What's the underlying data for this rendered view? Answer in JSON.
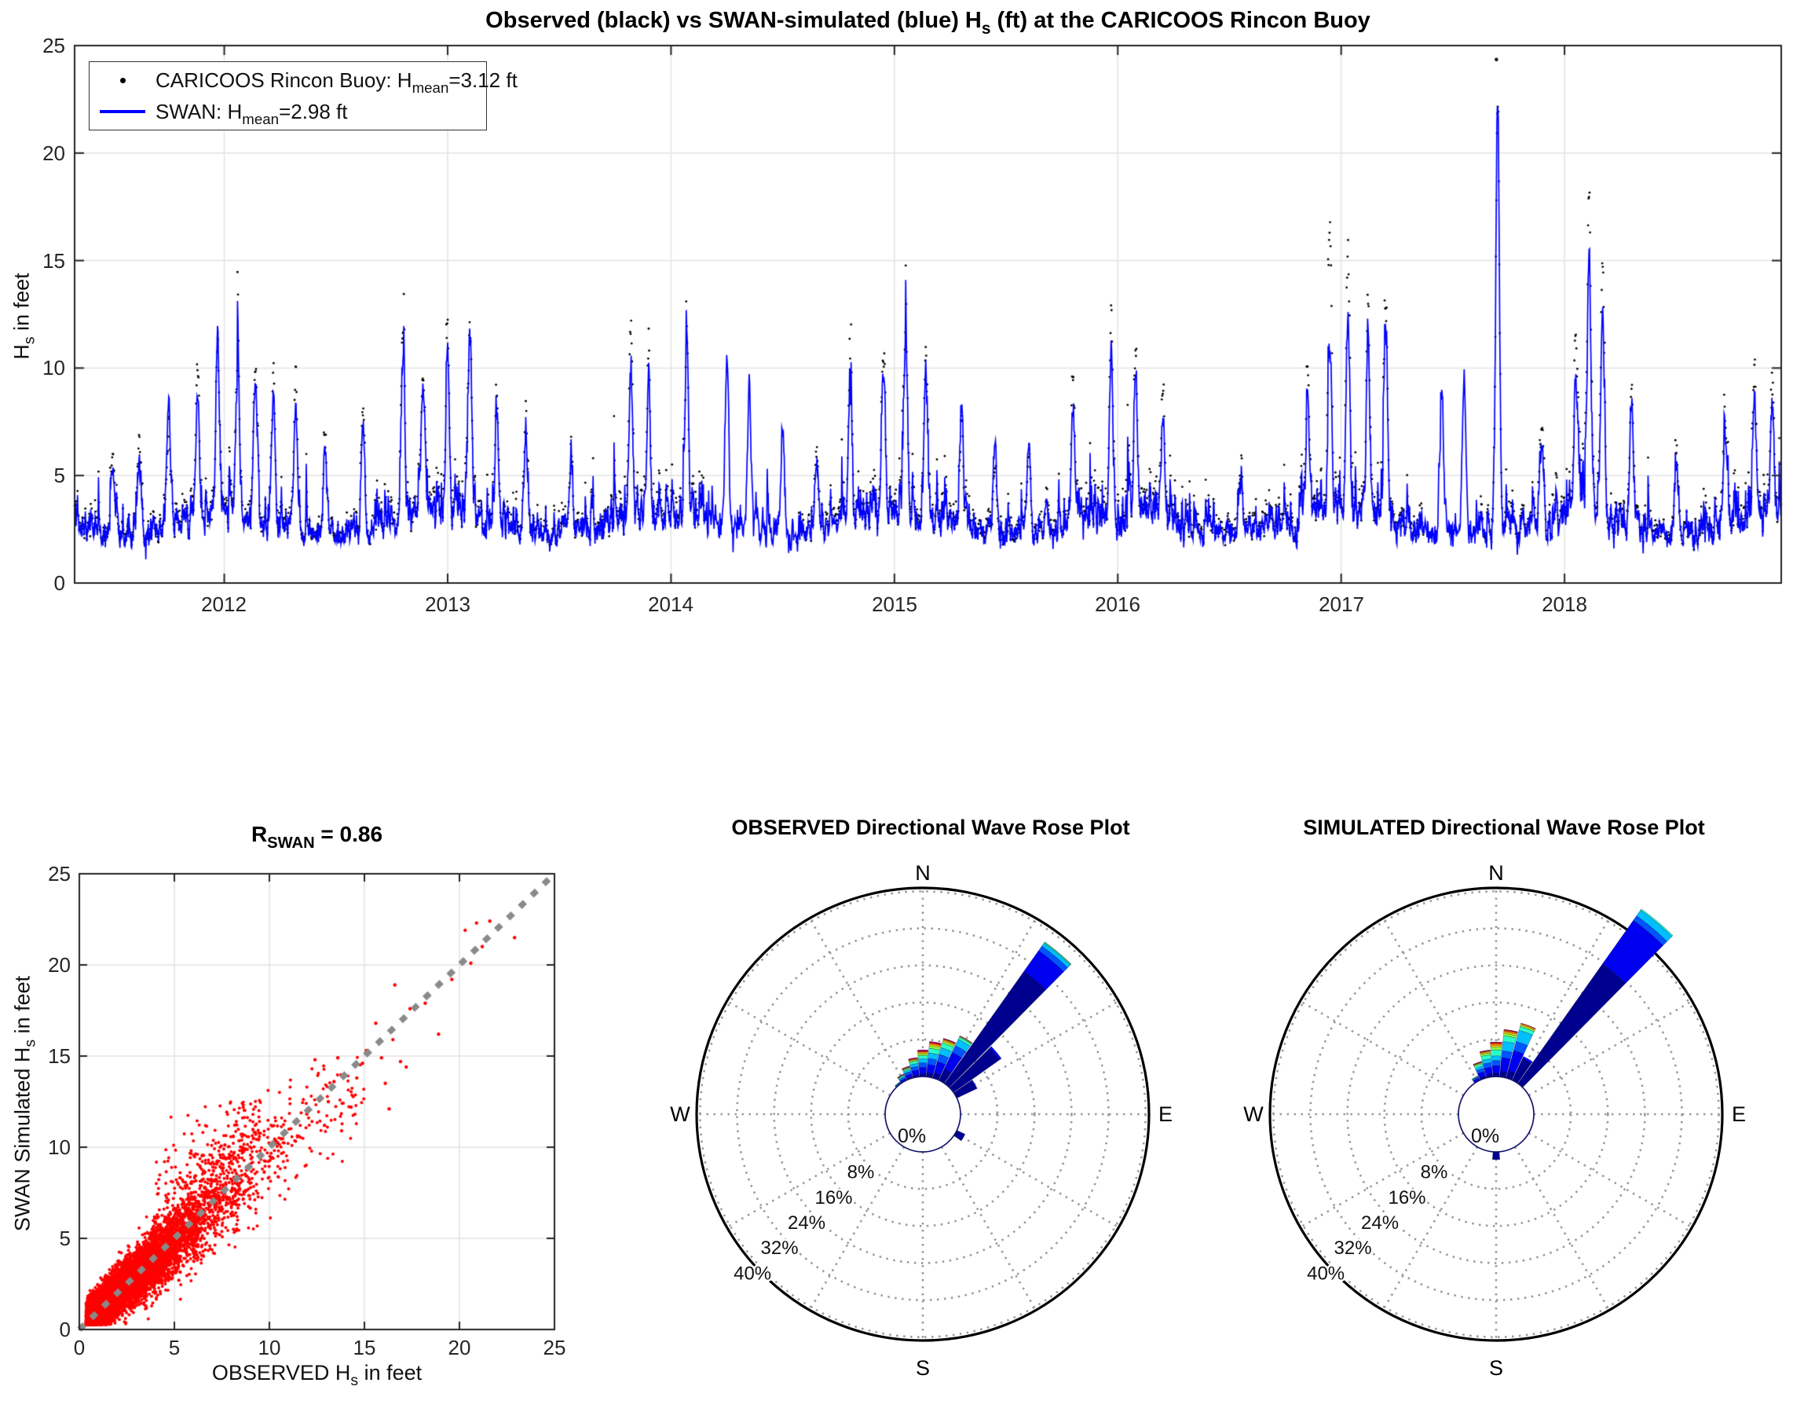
{
  "colors": {
    "observed": "#000000",
    "simulated": "#0000ff",
    "scatter_points": "#ff0000",
    "identity_line": "#8a8a8a",
    "grid": "#e3e3e3",
    "axis": "#222222",
    "rose_grid": "#9b9b9b",
    "rose_circle": "#000000",
    "rose_hole_stroke": "#15156b"
  },
  "rose_bins": [
    "#00008f",
    "#0000f0",
    "#0055ff",
    "#00bfff",
    "#2bffc8",
    "#8aff3c",
    "#ffe80f",
    "#ff9400",
    "#ff1e00",
    "#c6008f"
  ],
  "ui": {
    "top": {
      "title_pre": "Observed (black) vs SWAN-simulated (blue) H",
      "title_sub": "s",
      "title_post": " (ft) at the CARICOOS Rincon Buoy",
      "ylabel_pre": "H",
      "ylabel_sub": "s",
      "ylabel_post": " in feet",
      "yticks": [
        "0",
        "5",
        "10",
        "15",
        "20",
        "25"
      ],
      "xticks": [
        "2012",
        "2013",
        "2014",
        "2015",
        "2016",
        "2017",
        "2018"
      ],
      "legend": [
        {
          "pre": "CARICOOS Rincon Buoy: H",
          "sub": "mean",
          "post": "=3.12 ft"
        },
        {
          "pre": "SWAN: H",
          "sub": "mean",
          "post": "=2.98 ft"
        }
      ]
    },
    "scatter": {
      "title_pre": "R",
      "title_sub": "SWAN",
      "title_post": " = 0.86",
      "xlabel_pre": "OBSERVED H",
      "xlabel_sub": "s",
      "xlabel_post": " in feet",
      "ylabel_pre": "SWAN Simulated H",
      "ylabel_sub": "s",
      "ylabel_post": " in feet",
      "xticks": [
        "0",
        "5",
        "10",
        "15",
        "20",
        "25"
      ],
      "yticks": [
        "0",
        "5",
        "10",
        "15",
        "20",
        "25"
      ]
    }
  },
  "chart_data": [
    {
      "type": "line",
      "name": "observed-vs-simulated-timeseries",
      "title": "Observed (black) vs SWAN-simulated (blue) Hs (ft) at the CARICOOS Rincon Buoy",
      "xlabel": "",
      "ylabel": "Hs in feet",
      "xlim": [
        2011.33,
        2018.97
      ],
      "ylim": [
        0,
        25
      ],
      "xticks": [
        2012,
        2013,
        2014,
        2015,
        2016,
        2017,
        2018
      ],
      "yticks": [
        0,
        5,
        10,
        15,
        20,
        25
      ],
      "grid": true,
      "legend_position": "top-left",
      "seed": 20171,
      "n_points": 3500,
      "series": [
        {
          "name": "CARICOOS Rincon Buoy",
          "style": "dots",
          "color": "#000000",
          "mean_ft": 3.12
        },
        {
          "name": "SWAN",
          "style": "line",
          "color": "#0000ff",
          "mean_ft": 2.98
        }
      ],
      "observed_gaps": [
        [
          2014.15,
          2014.56
        ],
        [
          2017.37,
          2017.62
        ]
      ],
      "extra_observed_points": [
        [
          2017.695,
          24.35
        ]
      ],
      "storms": [
        [
          2011.5,
          3.5,
          3.0
        ],
        [
          2011.62,
          4.2,
          3.4
        ],
        [
          2011.75,
          4.0,
          5.6
        ],
        [
          2011.88,
          6.8,
          5.6
        ],
        [
          2011.97,
          8.2,
          8.8
        ],
        [
          2012.06,
          7.8,
          7.0
        ],
        [
          2012.14,
          7.2,
          6.6
        ],
        [
          2012.22,
          6.2,
          5.6
        ],
        [
          2012.32,
          6.4,
          5.2
        ],
        [
          2012.45,
          4.0,
          3.4
        ],
        [
          2012.62,
          5.2,
          4.4
        ],
        [
          2012.8,
          8.6,
          7.4
        ],
        [
          2012.89,
          7.0,
          6.6
        ],
        [
          2013.0,
          7.6,
          7.0
        ],
        [
          2013.1,
          7.4,
          7.8
        ],
        [
          2013.22,
          5.4,
          5.0
        ],
        [
          2013.35,
          4.6,
          4.0
        ],
        [
          2013.55,
          3.2,
          2.8
        ],
        [
          2013.82,
          8.8,
          7.0
        ],
        [
          2013.9,
          7.4,
          6.4
        ],
        [
          2014.07,
          7.2,
          7.6
        ],
        [
          2014.25,
          0,
          7.6
        ],
        [
          2014.35,
          0,
          6.4
        ],
        [
          2014.5,
          0,
          4.6
        ],
        [
          2014.65,
          3.4,
          3.0
        ],
        [
          2014.8,
          7.0,
          6.0
        ],
        [
          2014.95,
          7.6,
          7.0
        ],
        [
          2015.05,
          8.2,
          8.0
        ],
        [
          2015.14,
          7.2,
          6.6
        ],
        [
          2015.3,
          4.4,
          5.4
        ],
        [
          2015.45,
          3.6,
          4.6
        ],
        [
          2015.6,
          3.4,
          3.8
        ],
        [
          2015.8,
          6.6,
          5.2
        ],
        [
          2015.97,
          7.2,
          6.2
        ],
        [
          2016.08,
          7.0,
          6.4
        ],
        [
          2016.2,
          5.2,
          4.2
        ],
        [
          2016.55,
          3.0,
          2.6
        ],
        [
          2016.85,
          6.6,
          5.6
        ],
        [
          2016.95,
          13.6,
          8.2
        ],
        [
          2017.03,
          12.0,
          9.2
        ],
        [
          2017.12,
          9.2,
          8.2
        ],
        [
          2017.2,
          9.4,
          8.6
        ],
        [
          2017.45,
          0,
          5.8
        ],
        [
          2017.55,
          0,
          7.2
        ],
        [
          2017.7,
          19.4,
          19.6
        ],
        [
          2017.9,
          4.2,
          3.6
        ],
        [
          2018.05,
          8.6,
          6.8
        ],
        [
          2018.11,
          15.0,
          12.5
        ],
        [
          2018.17,
          11.8,
          9.6
        ],
        [
          2018.3,
          6.8,
          6.2
        ],
        [
          2018.5,
          3.4,
          3.0
        ],
        [
          2018.72,
          5.0,
          4.4
        ],
        [
          2018.85,
          5.4,
          4.8
        ],
        [
          2018.93,
          5.2,
          4.6
        ]
      ]
    },
    {
      "type": "scatter",
      "name": "swan-vs-observed-scatter",
      "title": "R_SWAN = 0.86",
      "r_value": 0.86,
      "xlabel": "OBSERVED Hs in feet",
      "ylabel": "SWAN Simulated Hs in feet",
      "xlim": [
        0,
        25
      ],
      "ylim": [
        0,
        25
      ],
      "xticks": [
        0,
        5,
        10,
        15,
        20,
        25
      ],
      "yticks": [
        0,
        5,
        10,
        15,
        20,
        25
      ],
      "grid": true,
      "seed": 7707,
      "n_points": 9000,
      "point_color": "#ff0000",
      "fit": {
        "slope": 0.92,
        "intercept": 0.2
      },
      "identity_line": {
        "style": "dashed",
        "color": "#8a8a8a"
      },
      "outliers": [
        [
          12.4,
          14.8
        ],
        [
          12.9,
          11.2
        ],
        [
          13.1,
          12.5
        ],
        [
          13.4,
          13.6
        ],
        [
          13.6,
          14.9
        ],
        [
          13.8,
          10.9
        ],
        [
          14.3,
          12.2
        ],
        [
          14.6,
          13.8
        ],
        [
          14.9,
          14.6
        ],
        [
          15.1,
          15.3
        ],
        [
          15.6,
          16.8
        ],
        [
          15.9,
          14.9
        ],
        [
          16.1,
          13.5
        ],
        [
          16.3,
          12.1
        ],
        [
          16.5,
          15.9
        ],
        [
          16.6,
          18.9
        ],
        [
          16.9,
          14.7
        ],
        [
          17.2,
          14.4
        ],
        [
          17.4,
          17.6
        ],
        [
          18.2,
          17.9
        ],
        [
          18.9,
          16.2
        ],
        [
          19.6,
          19.2
        ],
        [
          20.3,
          21.9
        ],
        [
          20.6,
          20.1
        ],
        [
          20.9,
          22.3
        ],
        [
          21.2,
          21.0
        ],
        [
          21.6,
          22.4
        ],
        [
          22.9,
          21.5
        ]
      ]
    },
    {
      "type": "wind_rose",
      "name": "observed-wave-rose",
      "title": "OBSERVED Directional Wave Rose Plot",
      "compass": [
        "N",
        "E",
        "S",
        "W"
      ],
      "center_label": "0%",
      "ring_percents": [
        8,
        16,
        24,
        32,
        40
      ],
      "ring_labels": [
        "8%",
        "16%",
        "24%",
        "32%",
        "40%"
      ],
      "petals": [
        {
          "dir": -40,
          "segments": [
            0.3,
            0.2,
            0.1,
            0.1,
            0.1,
            0,
            0,
            0,
            0,
            0
          ]
        },
        {
          "dir": -30,
          "segments": [
            0.4,
            0.4,
            0.3,
            0.25,
            0.2,
            0.1,
            0.05,
            0.05,
            0.05,
            0.05
          ]
        },
        {
          "dir": -20,
          "segments": [
            0.6,
            0.7,
            0.5,
            0.4,
            0.3,
            0.15,
            0.1,
            0.1,
            0.1,
            0.05
          ]
        },
        {
          "dir": -10,
          "segments": [
            0.8,
            1.0,
            0.8,
            0.6,
            0.5,
            0.25,
            0.15,
            0.15,
            0.15,
            0.1
          ]
        },
        {
          "dir": 0,
          "segments": [
            1.0,
            1.3,
            1.0,
            0.85,
            0.7,
            0.35,
            0.25,
            0.25,
            0.2,
            0.2
          ]
        },
        {
          "dir": 10,
          "segments": [
            1.2,
            1.8,
            1.3,
            1.2,
            1.0,
            0.5,
            0.3,
            0.3,
            0.25,
            0.15
          ]
        },
        {
          "dir": 20,
          "segments": [
            1.5,
            2.5,
            1.6,
            1.5,
            1.0,
            0.4,
            0.25,
            0.2,
            0.15,
            0.1
          ]
        },
        {
          "dir": 30,
          "segments": [
            3.0,
            4.0,
            1.6,
            1.5,
            0.5,
            0.15,
            0.1,
            0.05,
            0.05,
            0
          ]
        },
        {
          "dir": 40,
          "segments": [
            30.0,
            5.5,
            1.2,
            0.8,
            0.2,
            0.1,
            0,
            0,
            0,
            0
          ]
        },
        {
          "dir": 50,
          "segments": [
            12.5,
            0.5,
            0,
            0,
            0,
            0,
            0,
            0,
            0,
            0
          ]
        },
        {
          "dir": 60,
          "segments": [
            5.0,
            0.2,
            0,
            0,
            0,
            0,
            0,
            0,
            0,
            0
          ]
        },
        {
          "dir": 120,
          "segments": [
            2.3,
            0,
            0,
            0,
            0,
            0,
            0,
            0,
            0,
            0
          ]
        }
      ]
    },
    {
      "type": "wind_rose",
      "name": "simulated-wave-rose",
      "title": "SIMULATED Directional Wave Rose Plot",
      "compass": [
        "N",
        "E",
        "S",
        "W"
      ],
      "center_label": "0%",
      "ring_percents": [
        8,
        16,
        24,
        32,
        40
      ],
      "ring_labels": [
        "8%",
        "16%",
        "24%",
        "32%",
        "40%"
      ],
      "petals": [
        {
          "dir": -30,
          "segments": [
            0.5,
            0.4,
            0.2,
            0.15,
            0.1,
            0.05,
            0,
            0,
            0,
            0
          ]
        },
        {
          "dir": -20,
          "segments": [
            0.8,
            1.0,
            0.7,
            0.5,
            0.5,
            0.2,
            0.1,
            0.1,
            0.1,
            0.05
          ]
        },
        {
          "dir": -10,
          "segments": [
            1.0,
            1.4,
            1.0,
            0.8,
            0.9,
            0.4,
            0.2,
            0.2,
            0.15,
            0.1
          ]
        },
        {
          "dir": 0,
          "segments": [
            1.1,
            1.6,
            1.1,
            1.0,
            1.3,
            0.6,
            0.3,
            0.4,
            0.3,
            0.1
          ]
        },
        {
          "dir": 10,
          "segments": [
            1.5,
            3.0,
            1.5,
            2.0,
            1.2,
            0.5,
            0.3,
            0.3,
            0.2,
            0.1
          ]
        },
        {
          "dir": 20,
          "segments": [
            2.0,
            4.5,
            2.0,
            2.5,
            0.8,
            0.3,
            0.2,
            0.2,
            0.1,
            0
          ]
        },
        {
          "dir": 30,
          "segments": [
            5.5,
            0.5,
            0,
            0,
            0,
            0,
            0,
            0,
            0,
            0
          ]
        },
        {
          "dir": 40,
          "segments": [
            32.0,
            11.5,
            1.2,
            1.5,
            0.3,
            0,
            0,
            0,
            0,
            0
          ]
        },
        {
          "dir": 180,
          "segments": [
            2.0,
            0,
            0,
            0,
            0,
            0,
            0,
            0,
            0,
            0
          ]
        }
      ]
    }
  ]
}
